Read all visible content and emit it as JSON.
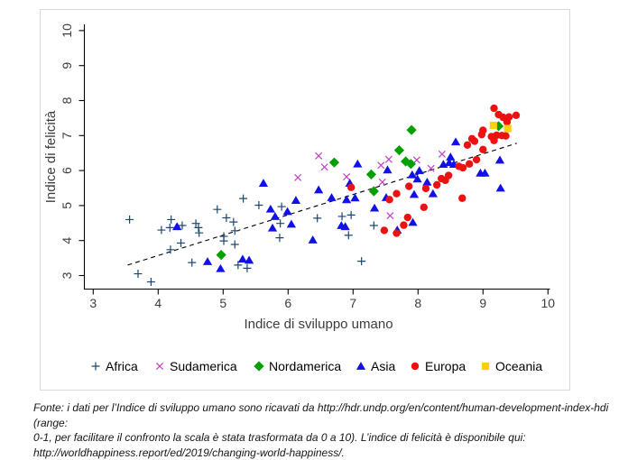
{
  "figure": {
    "xlabel": "Indice di sviluppo umano",
    "ylabel": "Indice di felicità",
    "border_color": "#d9d9d9",
    "axis_color": "#000000",
    "trend_line_color": "#000000"
  },
  "chart_data": {
    "type": "scatter",
    "title": "",
    "xlabel": "Indice di sviluppo umano",
    "ylabel": "Indice di felicità",
    "xlim": [
      3,
      10
    ],
    "ylim": [
      3,
      10
    ],
    "xticks": [
      3,
      4,
      5,
      6,
      7,
      8,
      9,
      10
    ],
    "yticks": [
      3,
      4,
      5,
      6,
      7,
      8,
      9,
      10
    ],
    "grid": false,
    "legend_position": "bottom",
    "trend_line": {
      "style": "dashed",
      "x1": 3.53,
      "y1": 3.3,
      "x2": 9.52,
      "y2": 6.78
    },
    "series": [
      {
        "name": "Africa",
        "marker": "plus",
        "color": "#1a476f",
        "points": [
          [
            3.56,
            4.6
          ],
          [
            3.69,
            3.05
          ],
          [
            3.89,
            2.82
          ],
          [
            4.05,
            4.3
          ],
          [
            4.19,
            3.74
          ],
          [
            4.2,
            4.6
          ],
          [
            4.18,
            4.37
          ],
          [
            4.37,
            4.43
          ],
          [
            4.35,
            3.93
          ],
          [
            4.52,
            3.37
          ],
          [
            4.58,
            4.49
          ],
          [
            4.62,
            4.37
          ],
          [
            4.63,
            4.22
          ],
          [
            4.91,
            4.89
          ],
          [
            5.05,
            4.65
          ],
          [
            5.16,
            4.53
          ],
          [
            5.18,
            4.28
          ],
          [
            5.01,
            4.12
          ],
          [
            5.01,
            3.99
          ],
          [
            5.18,
            3.89
          ],
          [
            5.23,
            3.3
          ],
          [
            5.37,
            3.21
          ],
          [
            5.31,
            5.2
          ],
          [
            5.55,
            5.01
          ],
          [
            5.9,
            4.97
          ],
          [
            5.88,
            4.49
          ],
          [
            5.87,
            4.08
          ],
          [
            6.45,
            4.64
          ],
          [
            6.83,
            4.69
          ],
          [
            6.97,
            4.73
          ],
          [
            6.93,
            4.15
          ],
          [
            7.13,
            3.41
          ],
          [
            7.32,
            4.43
          ]
        ]
      },
      {
        "name": "Sudamerica",
        "marker": "cross",
        "color": "#bf3fbf",
        "points": [
          [
            6.15,
            5.8
          ],
          [
            6.47,
            6.42
          ],
          [
            6.56,
            6.1
          ],
          [
            6.9,
            5.82
          ],
          [
            7.43,
            6.15
          ],
          [
            7.45,
            5.67
          ],
          [
            7.55,
            6.32
          ],
          [
            7.57,
            4.71
          ],
          [
            7.98,
            6.3
          ],
          [
            8.2,
            6.06
          ],
          [
            8.37,
            6.47
          ]
        ]
      },
      {
        "name": "Nordamerica",
        "marker": "diamond",
        "color": "#00a000",
        "points": [
          [
            4.97,
            3.59
          ],
          [
            6.71,
            6.23
          ],
          [
            7.28,
            5.89
          ],
          [
            7.32,
            5.41
          ],
          [
            7.71,
            6.58
          ],
          [
            7.81,
            6.26
          ],
          [
            7.89,
            6.19
          ],
          [
            7.9,
            7.16
          ],
          [
            9.24,
            7.27
          ]
        ]
      },
      {
        "name": "Asia",
        "marker": "triangle",
        "color": "#1010e8",
        "points": [
          [
            4.29,
            4.4
          ],
          [
            4.76,
            3.4
          ],
          [
            4.96,
            3.2
          ],
          [
            5.3,
            3.47
          ],
          [
            5.4,
            3.44
          ],
          [
            5.62,
            5.64
          ],
          [
            5.73,
            4.9
          ],
          [
            5.8,
            4.69
          ],
          [
            5.99,
            4.83
          ],
          [
            5.76,
            4.36
          ],
          [
            6.05,
            4.47
          ],
          [
            6.12,
            5.15
          ],
          [
            6.38,
            4.02
          ],
          [
            6.47,
            5.45
          ],
          [
            6.67,
            5.23
          ],
          [
            6.82,
            4.43
          ],
          [
            6.88,
            4.4
          ],
          [
            6.9,
            5.17
          ],
          [
            6.95,
            5.64
          ],
          [
            7.03,
            5.22
          ],
          [
            7.07,
            6.19
          ],
          [
            7.33,
            4.93
          ],
          [
            7.51,
            5.23
          ],
          [
            7.53,
            6.02
          ],
          [
            7.68,
            4.3
          ],
          [
            7.92,
            4.52
          ],
          [
            7.91,
            5.88
          ],
          [
            7.94,
            5.32
          ],
          [
            7.99,
            5.76
          ],
          [
            8.02,
            6.0
          ],
          [
            8.14,
            5.67
          ],
          [
            8.23,
            5.34
          ],
          [
            8.39,
            6.18
          ],
          [
            8.48,
            6.23
          ],
          [
            8.55,
            6.18
          ],
          [
            8.5,
            6.39
          ],
          [
            8.58,
            6.82
          ],
          [
            8.96,
            5.93
          ],
          [
            9.03,
            5.93
          ],
          [
            9.26,
            6.3
          ],
          [
            9.27,
            5.5
          ]
        ]
      },
      {
        "name": "Europa",
        "marker": "circle",
        "color": "#ee1111",
        "points": [
          [
            6.97,
            5.52
          ],
          [
            7.48,
            4.29
          ],
          [
            7.67,
            4.21
          ],
          [
            7.78,
            4.44
          ],
          [
            7.84,
            4.66
          ],
          [
            8.09,
            4.95
          ],
          [
            8.68,
            5.21
          ],
          [
            7.56,
            5.17
          ],
          [
            7.67,
            5.34
          ],
          [
            7.86,
            5.55
          ],
          [
            8.12,
            5.49
          ],
          [
            8.29,
            5.59
          ],
          [
            8.36,
            5.77
          ],
          [
            8.42,
            5.72
          ],
          [
            8.47,
            5.86
          ],
          [
            8.63,
            6.12
          ],
          [
            8.69,
            6.08
          ],
          [
            8.79,
            6.19
          ],
          [
            8.9,
            6.31
          ],
          [
            8.76,
            6.73
          ],
          [
            8.87,
            6.84
          ],
          [
            9.0,
            6.6
          ],
          [
            8.83,
            6.91
          ],
          [
            8.98,
            7.03
          ],
          [
            9.0,
            7.15
          ],
          [
            9.13,
            6.97
          ],
          [
            9.17,
            6.86
          ],
          [
            9.21,
            7.01
          ],
          [
            9.29,
            7.0
          ],
          [
            9.35,
            6.99
          ],
          [
            9.17,
            7.78
          ],
          [
            9.24,
            7.6
          ],
          [
            9.31,
            7.52
          ],
          [
            9.4,
            7.53
          ],
          [
            9.51,
            7.58
          ],
          [
            9.37,
            7.39
          ]
        ]
      },
      {
        "name": "Oceania",
        "marker": "square",
        "color": "#ffd00a",
        "points": [
          [
            9.16,
            7.29
          ],
          [
            9.38,
            7.2
          ]
        ]
      }
    ]
  },
  "footnote": {
    "lines": [
      "Fonte: i dati per l’Indice di sviluppo umano sono ricavati da http://hdr.undp.org/en/content/human-development-index-hdi (range:",
      "0-1, per facilitare il confronto la scala è stata trasformata da 0 a 10). L’indice di felicità è disponibile qui:",
      "http://worldhappiness.report/ed/2019/changing-world-happiness/."
    ]
  }
}
